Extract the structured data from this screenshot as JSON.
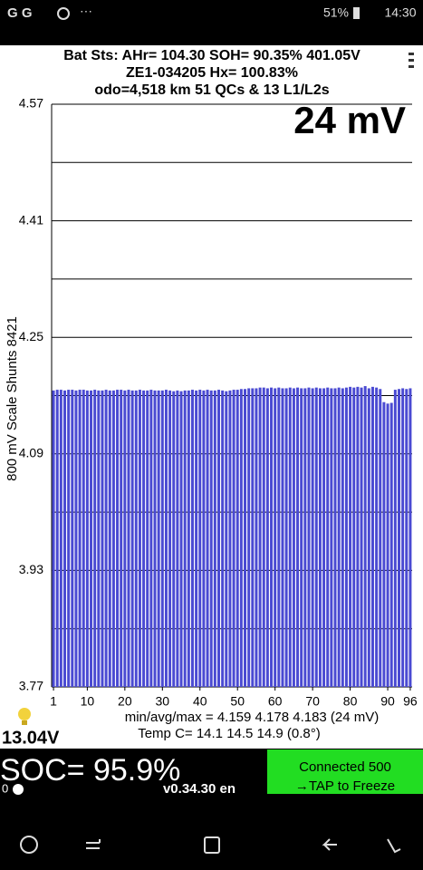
{
  "status_bar": {
    "apps": "G G",
    "battery": "51%",
    "time": "14:30"
  },
  "header": {
    "line1": "Bat Sts:  AHr= 104.30  SOH= 90.35%   401.05V",
    "line2": "ZE1-034205   Hx= 100.83%",
    "line3": "odo=4,518 km  51 QCs & 13 L1/L2s"
  },
  "chart_data": {
    "type": "bar",
    "annotation": "24 mV",
    "y_label": "800 mV Scale   Shunts 8421",
    "color": "#4a4ad2",
    "x": [
      1,
      2,
      3,
      4,
      5,
      6,
      7,
      8,
      9,
      10,
      11,
      12,
      13,
      14,
      15,
      16,
      17,
      18,
      19,
      20,
      21,
      22,
      23,
      24,
      25,
      26,
      27,
      28,
      29,
      30,
      31,
      32,
      33,
      34,
      35,
      36,
      37,
      38,
      39,
      40,
      41,
      42,
      43,
      44,
      45,
      46,
      47,
      48,
      49,
      50,
      51,
      52,
      53,
      54,
      55,
      56,
      57,
      58,
      59,
      60,
      61,
      62,
      63,
      64,
      65,
      66,
      67,
      68,
      69,
      70,
      71,
      72,
      73,
      74,
      75,
      76,
      77,
      78,
      79,
      80,
      81,
      82,
      83,
      84,
      85,
      86,
      87,
      88,
      89,
      90,
      91,
      92,
      93,
      94,
      95,
      96
    ],
    "values": [
      4.177,
      4.178,
      4.178,
      4.177,
      4.178,
      4.178,
      4.177,
      4.178,
      4.178,
      4.177,
      4.177,
      4.178,
      4.177,
      4.177,
      4.178,
      4.177,
      4.177,
      4.178,
      4.178,
      4.177,
      4.178,
      4.177,
      4.177,
      4.178,
      4.177,
      4.177,
      4.178,
      4.177,
      4.177,
      4.177,
      4.178,
      4.177,
      4.176,
      4.177,
      4.176,
      4.177,
      4.177,
      4.178,
      4.177,
      4.178,
      4.177,
      4.178,
      4.177,
      4.177,
      4.178,
      4.177,
      4.176,
      4.177,
      4.178,
      4.178,
      4.179,
      4.179,
      4.18,
      4.18,
      4.18,
      4.181,
      4.181,
      4.18,
      4.181,
      4.18,
      4.181,
      4.18,
      4.18,
      4.181,
      4.18,
      4.181,
      4.18,
      4.18,
      4.181,
      4.18,
      4.181,
      4.18,
      4.18,
      4.181,
      4.18,
      4.18,
      4.181,
      4.18,
      4.181,
      4.182,
      4.181,
      4.182,
      4.181,
      4.183,
      4.18,
      4.182,
      4.181,
      4.179,
      4.161,
      4.159,
      4.16,
      4.178,
      4.179,
      4.18,
      4.179,
      4.18
    ],
    "xlim": [
      0.5,
      96.5
    ],
    "xticks": [
      1,
      10,
      20,
      30,
      40,
      50,
      60,
      70,
      80,
      90,
      96
    ],
    "ylim": [
      3.77,
      4.57
    ],
    "yticks": [
      3.77,
      3.93,
      4.09,
      4.25,
      4.41,
      4.57
    ],
    "minor_gridlines": [
      3.85,
      4.01,
      4.17,
      4.33,
      4.49
    ],
    "grid": true
  },
  "footer": {
    "stats": "min/avg/max = 4.159 4.178 4.183  (24 mV)",
    "temp": "Temp C= 14.1  14.5  14.9  (0.8°)",
    "voltage": "13.04V",
    "soc": "SOC= 95.9%",
    "slider": "0",
    "version": "v0.34.30 en",
    "connected": "Connected 500",
    "tap": "→TAP to Freeze"
  }
}
